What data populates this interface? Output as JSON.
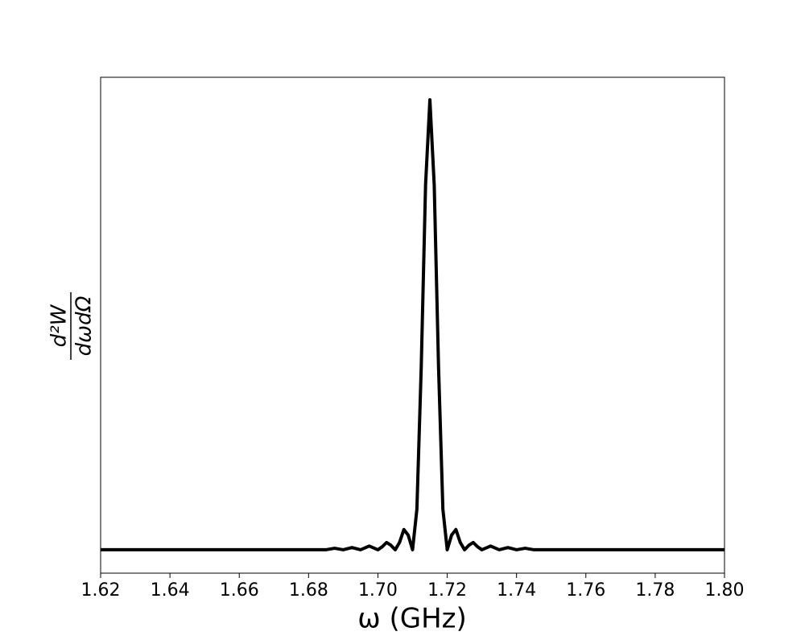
{
  "chart_data": {
    "type": "line",
    "xlabel": "ω (GHz)",
    "ylabel": {
      "numerator": "d²W",
      "denominator": "dωdΩ"
    },
    "x": [
      1.62,
      1.655,
      1.685,
      1.6875,
      1.69,
      1.6925,
      1.695,
      1.6975,
      1.7,
      1.70125,
      1.7025,
      1.70375,
      1.705,
      1.70625,
      1.7075,
      1.70875,
      1.71,
      1.71125,
      1.7125,
      1.71375,
      1.715,
      1.71625,
      1.7175,
      1.71875,
      1.72,
      1.72125,
      1.7225,
      1.72375,
      1.725,
      1.72625,
      1.7275,
      1.72875,
      1.73,
      1.7325,
      1.735,
      1.7375,
      1.74,
      1.7425,
      1.745,
      1.775,
      1.8
    ],
    "series": [
      {
        "color": "#000000",
        "values": [
          0,
          0,
          0,
          0.0033,
          0,
          0.005,
          0,
          0.0083,
          0,
          0.0067,
          0.0162,
          0.01,
          0,
          0.0165,
          0.045,
          0.0324,
          0,
          0.0901,
          0.4053,
          0.8106,
          1,
          0.8106,
          0.4053,
          0.0901,
          0,
          0.0324,
          0.045,
          0.0165,
          0,
          0.01,
          0.0162,
          0.0067,
          0,
          0.0083,
          0,
          0.005,
          0,
          0.0033,
          0,
          0,
          0
        ]
      }
    ],
    "xlim": [
      1.62,
      1.8
    ],
    "xticks": [
      1.62,
      1.64,
      1.66,
      1.68,
      {
        "value": 1.7,
        "label": "1.70"
      },
      1.72,
      1.74,
      1.76,
      1.78,
      {
        "value": 1.8,
        "label": "1.80"
      }
    ],
    "ylim": [
      -0.052,
      1.05
    ],
    "grid": false
  }
}
